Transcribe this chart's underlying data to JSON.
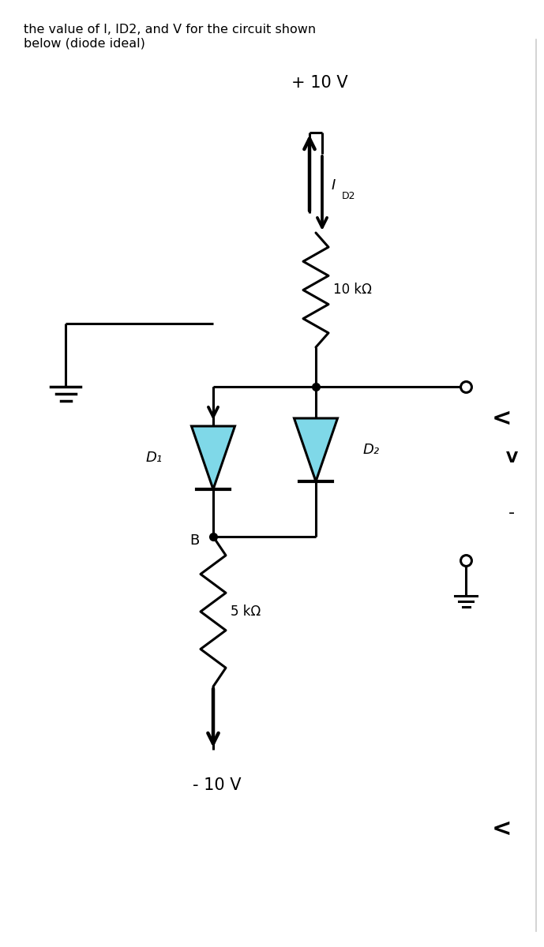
{
  "title_text": "the value of I, ID2, and V for the circuit shown\nbelow (diode ideal)",
  "title_fontsize": 11.5,
  "bg_color": "#ffffff",
  "line_color": "#000000",
  "diode_fill": "#7fd8e8",
  "text_color": "#000000",
  "plus10v_label": "+ 10 V",
  "minus10v_label": "- 10 V",
  "R1_label": "10 kΩ",
  "R2_label": "5 kΩ",
  "D1_label": "D₁",
  "D2_label": "D₂",
  "I_label": "I",
  "B_label": "B",
  "V_label": "V",
  "fig_width": 6.89,
  "fig_height": 12.0,
  "dpi": 100
}
